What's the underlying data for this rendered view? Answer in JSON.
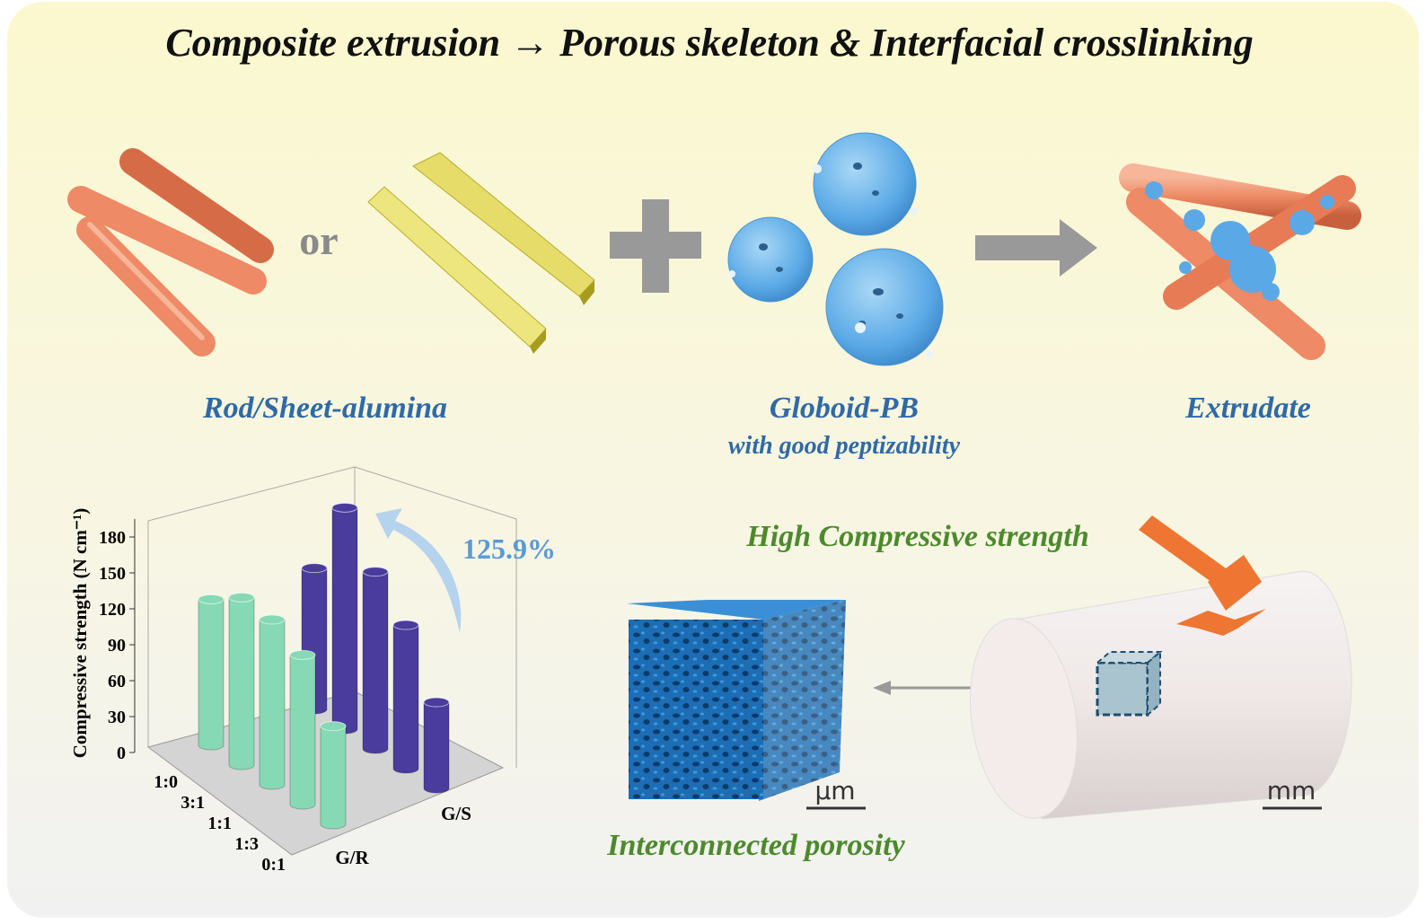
{
  "header": {
    "title": "Composite extrusion → Porous skeleton & Interfacial crosslinking"
  },
  "labels": {
    "or": "or",
    "rod_sheet": "Rod/Sheet-alumina",
    "globoid": "Globoid-PB",
    "globoid_note": "with good peptizability",
    "extrudate": "Extrudate",
    "strength": "High Compressive strength",
    "porosity": "Interconnected porosity",
    "micro_scale": "μm",
    "milli_scale": "mm",
    "increase": "125.9%"
  },
  "chart_data": {
    "type": "bar3d",
    "ylabel": "Compressive strength (N cm⁻¹)",
    "categories": [
      "1:0",
      "3:1",
      "1:1",
      "1:3",
      "0:1"
    ],
    "series": [
      {
        "name": "G/R",
        "color": "#86d9b4",
        "values": [
          122,
          140,
          138,
          125,
          82
        ]
      },
      {
        "name": "G/S",
        "color": "#4a3c9c",
        "values": [
          118,
          185,
          148,
          120,
          72
        ]
      }
    ],
    "ylim": [
      0,
      195
    ],
    "yticks": [
      0,
      30,
      60,
      90,
      120,
      150,
      180
    ]
  }
}
